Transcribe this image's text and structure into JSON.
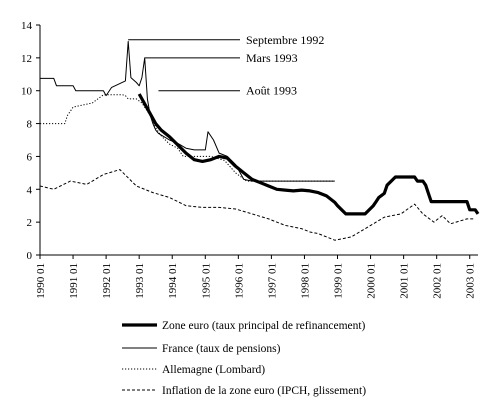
{
  "chart_data": {
    "type": "line",
    "title": "",
    "xlabel": "",
    "ylabel": "",
    "ylim": [
      0,
      14
    ],
    "y_ticks": [
      0,
      2,
      4,
      6,
      8,
      10,
      12,
      14
    ],
    "x_range": [
      "1990-01",
      "2003-04"
    ],
    "x_ticks": [
      "1990 01",
      "1991 01",
      "1992 01",
      "1993 01",
      "1994 01",
      "1995 01",
      "1996 01",
      "1997 01",
      "1998 01",
      "1999 01",
      "2000 01",
      "2001 01",
      "2002 01",
      "2003 01"
    ],
    "grid": false,
    "legend_position": "bottom",
    "annotations": [
      {
        "text": "Septembre 1992",
        "x": "1992-09",
        "y": 13.1
      },
      {
        "text": "Mars 1993",
        "x": "1993-03",
        "y": 12.0
      },
      {
        "text": "Août 1993",
        "x": "1993-08",
        "y": 10.0
      }
    ],
    "series": [
      {
        "name": "Zone euro (taux principal de refinancement)",
        "style": "thick",
        "color": "#000000",
        "points": [
          [
            "1993-01",
            9.8
          ],
          [
            "1993-03",
            9.2
          ],
          [
            "1993-05",
            8.6
          ],
          [
            "1993-07",
            8.0
          ],
          [
            "1993-09",
            7.6
          ],
          [
            "1993-12",
            7.2
          ],
          [
            "1994-03",
            6.7
          ],
          [
            "1994-06",
            6.2
          ],
          [
            "1994-09",
            5.8
          ],
          [
            "1994-12",
            5.7
          ],
          [
            "1995-03",
            5.8
          ],
          [
            "1995-06",
            6.0
          ],
          [
            "1995-09",
            5.9
          ],
          [
            "1995-12",
            5.4
          ],
          [
            "1996-03",
            5.0
          ],
          [
            "1996-06",
            4.6
          ],
          [
            "1996-09",
            4.4
          ],
          [
            "1996-12",
            4.2
          ],
          [
            "1997-03",
            4.0
          ],
          [
            "1997-06",
            3.95
          ],
          [
            "1997-09",
            3.9
          ],
          [
            "1997-12",
            3.95
          ],
          [
            "1998-03",
            3.9
          ],
          [
            "1998-06",
            3.8
          ],
          [
            "1998-09",
            3.6
          ],
          [
            "1998-12",
            3.2
          ],
          [
            "1999-01",
            3.0
          ],
          [
            "1999-04",
            2.5
          ],
          [
            "1999-11",
            2.5
          ],
          [
            "2000-02",
            3.0
          ],
          [
            "2000-03",
            3.25
          ],
          [
            "2000-04",
            3.5
          ],
          [
            "2000-06",
            3.75
          ],
          [
            "2000-07",
            4.25
          ],
          [
            "2000-10",
            4.75
          ],
          [
            "2001-05",
            4.75
          ],
          [
            "2001-06",
            4.5
          ],
          [
            "2001-08",
            4.5
          ],
          [
            "2001-09",
            4.25
          ],
          [
            "2001-10",
            3.75
          ],
          [
            "2001-11",
            3.25
          ],
          [
            "2002-12",
            3.25
          ],
          [
            "2003-01",
            2.75
          ],
          [
            "2003-03",
            2.75
          ],
          [
            "2003-04",
            2.5
          ]
        ]
      },
      {
        "name": "France (taux de pensions)",
        "style": "solid",
        "color": "#000000",
        "points": [
          [
            "1990-01",
            10.75
          ],
          [
            "1990-06",
            10.75
          ],
          [
            "1990-07",
            10.3
          ],
          [
            "1991-01",
            10.3
          ],
          [
            "1991-02",
            10.0
          ],
          [
            "1991-12",
            10.0
          ],
          [
            "1992-01",
            9.7
          ],
          [
            "1992-03",
            10.2
          ],
          [
            "1992-08",
            10.6
          ],
          [
            "1992-09",
            13.0
          ],
          [
            "1992-10",
            10.8
          ],
          [
            "1992-12",
            10.5
          ],
          [
            "1993-01",
            10.3
          ],
          [
            "1993-02",
            10.8
          ],
          [
            "1993-03",
            12.0
          ],
          [
            "1993-04",
            9.5
          ],
          [
            "1993-05",
            8.5
          ],
          [
            "1993-06",
            8.0
          ],
          [
            "1993-07",
            7.6
          ],
          [
            "1993-08",
            7.4
          ],
          [
            "1993-10",
            7.2
          ],
          [
            "1993-12",
            7.0
          ],
          [
            "1994-03",
            6.8
          ],
          [
            "1994-06",
            6.5
          ],
          [
            "1994-09",
            6.4
          ],
          [
            "1995-01",
            6.4
          ],
          [
            "1995-02",
            7.5
          ],
          [
            "1995-04",
            7.0
          ],
          [
            "1995-06",
            6.2
          ],
          [
            "1995-09",
            6.0
          ],
          [
            "1995-12",
            5.5
          ],
          [
            "1996-03",
            4.6
          ],
          [
            "1996-06",
            4.5
          ],
          [
            "1996-12",
            4.5
          ],
          [
            "1998-12",
            4.5
          ]
        ]
      },
      {
        "name": "Allemagne (Lombard)",
        "style": "dotted",
        "color": "#000000",
        "points": [
          [
            "1990-01",
            8.0
          ],
          [
            "1990-10",
            8.0
          ],
          [
            "1990-11",
            8.5
          ],
          [
            "1991-01",
            9.0
          ],
          [
            "1991-08",
            9.25
          ],
          [
            "1991-12",
            9.75
          ],
          [
            "1992-07",
            9.75
          ],
          [
            "1992-08",
            9.7
          ],
          [
            "1992-09",
            9.5
          ],
          [
            "1992-12",
            9.5
          ],
          [
            "1993-02",
            9.25
          ],
          [
            "1993-05",
            8.5
          ],
          [
            "1993-07",
            7.75
          ],
          [
            "1993-09",
            7.25
          ],
          [
            "1993-12",
            6.75
          ],
          [
            "1994-03",
            6.5
          ],
          [
            "1994-05",
            6.0
          ],
          [
            "1994-12",
            6.0
          ],
          [
            "1995-03",
            6.0
          ],
          [
            "1995-08",
            5.75
          ],
          [
            "1995-12",
            5.0
          ],
          [
            "1996-04",
            4.5
          ],
          [
            "1997-12",
            4.5
          ],
          [
            "1998-12",
            4.5
          ]
        ]
      },
      {
        "name": "Inflation de la zone euro (IPCH, glissement)",
        "style": "dashed",
        "color": "#000000",
        "points": [
          [
            "1990-01",
            4.2
          ],
          [
            "1990-06",
            4.0
          ],
          [
            "1990-12",
            4.5
          ],
          [
            "1991-06",
            4.3
          ],
          [
            "1991-12",
            4.9
          ],
          [
            "1992-06",
            5.2
          ],
          [
            "1992-12",
            4.2
          ],
          [
            "1993-06",
            3.8
          ],
          [
            "1993-12",
            3.5
          ],
          [
            "1994-06",
            3.0
          ],
          [
            "1994-12",
            2.9
          ],
          [
            "1995-06",
            2.9
          ],
          [
            "1995-12",
            2.8
          ],
          [
            "1996-06",
            2.5
          ],
          [
            "1996-12",
            2.2
          ],
          [
            "1997-06",
            1.8
          ],
          [
            "1997-12",
            1.6
          ],
          [
            "1998-03",
            1.4
          ],
          [
            "1998-06",
            1.3
          ],
          [
            "1998-12",
            0.9
          ],
          [
            "1999-03",
            1.0
          ],
          [
            "1999-06",
            1.1
          ],
          [
            "1999-12",
            1.7
          ],
          [
            "2000-06",
            2.3
          ],
          [
            "2000-12",
            2.5
          ],
          [
            "2001-05",
            3.1
          ],
          [
            "2001-08",
            2.5
          ],
          [
            "2001-12",
            2.0
          ],
          [
            "2002-03",
            2.4
          ],
          [
            "2002-06",
            1.9
          ],
          [
            "2002-12",
            2.2
          ],
          [
            "2003-03",
            2.2
          ]
        ]
      }
    ]
  }
}
